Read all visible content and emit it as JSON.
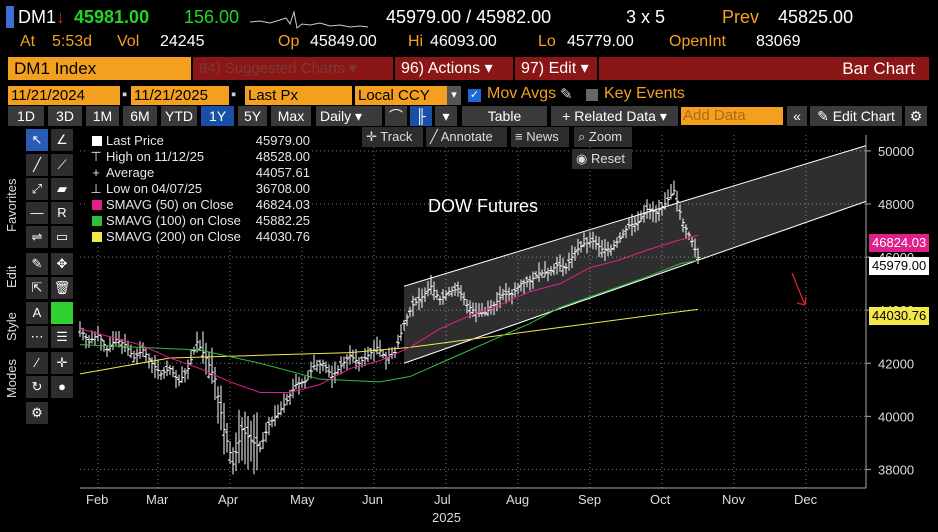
{
  "header": {
    "ticker": "DM1",
    "arrow": "↓",
    "last": "45981.00",
    "change": "156.00",
    "bid_ask": "45979.00 / 45982.00",
    "size": "3 x 5",
    "prev_label": "Prev",
    "prev": "45825.00",
    "at_label": "At",
    "time": "5:53d",
    "vol_label": "Vol",
    "vol": "24245",
    "op_label": "Op",
    "open": "45849.00",
    "hi_label": "Hi",
    "high": "46093.00",
    "lo_label": "Lo",
    "low": "45779.00",
    "oi_label": "OpenInt",
    "open_interest": "83069"
  },
  "toolbar": {
    "security": "DM1 Index",
    "suggested": "94) Suggested Charts",
    "actions": "96) Actions",
    "edit": "97) Edit",
    "chart_type": "Bar Chart",
    "start_date": "11/21/2024",
    "end_date": "11/21/2025",
    "field": "Last Px",
    "currency": "Local CCY",
    "mov_avgs": "Mov Avgs",
    "key_events": "Key Events",
    "periods": [
      "1D",
      "3D",
      "1M",
      "6M",
      "YTD",
      "1Y",
      "5Y",
      "Max"
    ],
    "selected_period": "1Y",
    "frequency": "Daily",
    "table": "Table",
    "related": "+ Related Data",
    "add_data_placeholder": "Add Data",
    "edit_chart": "Edit Chart"
  },
  "chart_tools": {
    "track": "Track",
    "annotate": "Annotate",
    "news": "News",
    "zoom": "Zoom",
    "reset": "Reset"
  },
  "side_tabs": [
    "Favorites",
    "Edit",
    "Style",
    "Modes"
  ],
  "legend": [
    {
      "label": "Last Price",
      "value": "45979.00",
      "color": "#ffffff"
    },
    {
      "label": "High on 11/12/25",
      "value": "48528.00",
      "color": "",
      "prefix": "⊤"
    },
    {
      "label": "Average",
      "value": "44057.61",
      "color": "",
      "prefix": "+"
    },
    {
      "label": "Low on 04/07/25",
      "value": "36708.00",
      "color": "",
      "prefix": "⊥"
    },
    {
      "label": "SMAVG (50)  on Close",
      "value": "46824.03",
      "color": "#e0208a"
    },
    {
      "label": "SMAVG (100)  on Close",
      "value": "45882.25",
      "color": "#2fbf3a"
    },
    {
      "label": "SMAVG (200)  on Close",
      "value": "44030.76",
      "color": "#f2e84a"
    }
  ],
  "tags": {
    "sma50": "46824.03",
    "last": "45979.00",
    "sma200": "44030.76"
  },
  "chart_data": {
    "type": "bar",
    "annotation": "DOW Futures",
    "x_ticks": [
      "Feb",
      "Mar",
      "Apr",
      "May",
      "Jun",
      "Jul",
      "Aug",
      "Sep",
      "Oct",
      "Nov",
      "Dec"
    ],
    "x_year": "2025",
    "y_ticks": [
      38000,
      40000,
      42000,
      44000,
      46000,
      48000,
      50000
    ],
    "ylim": [
      37300,
      50600
    ],
    "grid": true,
    "colors": {
      "price": "#ffffff",
      "sma50": "#e0208a",
      "sma100": "#2fbf3a",
      "sma200": "#f2e84a",
      "channel": "#ffffff"
    },
    "price_path": [
      [
        0,
        43300
      ],
      [
        3,
        42800
      ],
      [
        6,
        43100
      ],
      [
        9,
        42500
      ],
      [
        12,
        42900
      ],
      [
        15,
        42700
      ],
      [
        18,
        42200
      ],
      [
        21,
        42500
      ],
      [
        24,
        42000
      ],
      [
        27,
        41600
      ],
      [
        30,
        41800
      ],
      [
        33,
        41300
      ],
      [
        36,
        41800
      ],
      [
        39,
        42800
      ],
      [
        42,
        42200
      ],
      [
        45,
        41400
      ],
      [
        48,
        39500
      ],
      [
        51,
        38200
      ],
      [
        54,
        39500
      ],
      [
        57,
        39100
      ],
      [
        60,
        38800
      ],
      [
        63,
        39700
      ],
      [
        66,
        40100
      ],
      [
        69,
        40600
      ],
      [
        72,
        41200
      ],
      [
        75,
        41300
      ],
      [
        78,
        41900
      ],
      [
        81,
        42000
      ],
      [
        84,
        41500
      ],
      [
        87,
        41900
      ],
      [
        90,
        42300
      ],
      [
        93,
        42000
      ],
      [
        96,
        42300
      ],
      [
        99,
        42600
      ],
      [
        102,
        42200
      ],
      [
        105,
        42400
      ],
      [
        108,
        43500
      ],
      [
        111,
        44200
      ],
      [
        114,
        44500
      ],
      [
        117,
        44900
      ],
      [
        120,
        44400
      ],
      [
        123,
        44700
      ],
      [
        126,
        44800
      ],
      [
        129,
        44200
      ],
      [
        132,
        43900
      ],
      [
        135,
        43900
      ],
      [
        138,
        44200
      ],
      [
        141,
        44600
      ],
      [
        144,
        44600
      ],
      [
        147,
        45000
      ],
      [
        150,
        45100
      ],
      [
        153,
        45400
      ],
      [
        156,
        45400
      ],
      [
        159,
        45700
      ],
      [
        162,
        45600
      ],
      [
        165,
        46200
      ],
      [
        168,
        46500
      ],
      [
        171,
        46600
      ],
      [
        174,
        46300
      ],
      [
        177,
        46300
      ],
      [
        180,
        46700
      ],
      [
        183,
        47200
      ],
      [
        186,
        47300
      ],
      [
        189,
        47800
      ],
      [
        192,
        47700
      ],
      [
        195,
        48000
      ],
      [
        198,
        48500
      ],
      [
        201,
        47300
      ],
      [
        204,
        46600
      ],
      [
        206,
        45980
      ]
    ],
    "x_max_day": 262,
    "sma50": [
      [
        0,
        43300
      ],
      [
        10,
        43000
      ],
      [
        20,
        42700
      ],
      [
        30,
        42200
      ],
      [
        40,
        41800
      ],
      [
        50,
        41300
      ],
      [
        60,
        40900
      ],
      [
        70,
        40900
      ],
      [
        80,
        41200
      ],
      [
        90,
        41800
      ],
      [
        100,
        42100
      ],
      [
        110,
        42600
      ],
      [
        120,
        43300
      ],
      [
        130,
        43800
      ],
      [
        140,
        44200
      ],
      [
        150,
        44700
      ],
      [
        160,
        45000
      ],
      [
        170,
        45600
      ],
      [
        180,
        45900
      ],
      [
        190,
        46300
      ],
      [
        200,
        46650
      ],
      [
        206,
        46824
      ]
    ],
    "sma100": [
      [
        0,
        42700
      ],
      [
        20,
        42600
      ],
      [
        40,
        42500
      ],
      [
        60,
        42000
      ],
      [
        80,
        41400
      ],
      [
        100,
        41300
      ],
      [
        110,
        41500
      ],
      [
        120,
        42000
      ],
      [
        130,
        42500
      ],
      [
        140,
        43000
      ],
      [
        150,
        43500
      ],
      [
        160,
        44100
      ],
      [
        170,
        44500
      ],
      [
        180,
        44900
      ],
      [
        190,
        45300
      ],
      [
        200,
        45750
      ],
      [
        206,
        45882
      ]
    ],
    "sma200": [
      [
        0,
        41600
      ],
      [
        30,
        42200
      ],
      [
        60,
        42300
      ],
      [
        90,
        42400
      ],
      [
        110,
        42600
      ],
      [
        130,
        42900
      ],
      [
        150,
        43200
      ],
      [
        170,
        43500
      ],
      [
        190,
        43800
      ],
      [
        206,
        44031
      ]
    ],
    "channel_upper": [
      [
        108,
        44900
      ],
      [
        262,
        50200
      ]
    ],
    "channel_lower": [
      [
        108,
        42000
      ],
      [
        262,
        48100
      ]
    ]
  }
}
